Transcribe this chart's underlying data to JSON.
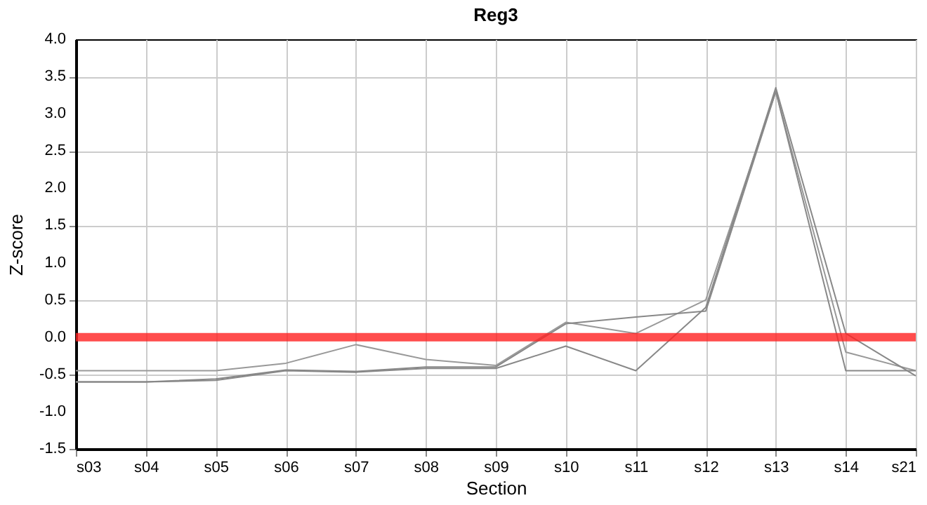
{
  "chart_data": {
    "type": "line",
    "title": "Reg3",
    "xlabel": "Section",
    "ylabel": "Z-score",
    "categories": [
      "s03",
      "s04",
      "s05",
      "s06",
      "s07",
      "s08",
      "s09",
      "s10",
      "s11",
      "s12",
      "s13",
      "s14",
      "s21"
    ],
    "series": [
      {
        "color": "#999999",
        "values": [
          -0.45,
          -0.45,
          -0.45,
          -0.35,
          -0.1,
          -0.3,
          -0.38,
          0.2,
          0.05,
          0.5,
          3.3,
          -0.2,
          -0.45
        ]
      },
      {
        "color": "#888888",
        "values": [
          -0.6,
          -0.6,
          -0.58,
          -0.45,
          -0.47,
          -0.42,
          -0.42,
          -0.12,
          -0.45,
          0.4,
          3.35,
          0.05,
          -0.52
        ]
      },
      {
        "color": "#888888",
        "values": [
          -0.6,
          -0.6,
          -0.56,
          -0.44,
          -0.46,
          -0.4,
          -0.4,
          0.18,
          0.27,
          0.35,
          3.3,
          -0.45,
          -0.45
        ]
      }
    ],
    "ylim": [
      -1.5,
      4.0
    ],
    "yticks": [
      {
        "value": -1.5,
        "label": "-1.5"
      },
      {
        "value": -1.0,
        "label": "-1.0"
      },
      {
        "value": -0.5,
        "label": "-0.5"
      },
      {
        "value": 0,
        "label": "0.0"
      },
      {
        "value": 0.5,
        "label": "0.5"
      },
      {
        "value": 1.0,
        "label": "1.0"
      },
      {
        "value": 1.5,
        "label": "1.5"
      },
      {
        "value": 2.0,
        "label": "2.0"
      },
      {
        "value": 2.5,
        "label": "2.5"
      },
      {
        "value": 3.0,
        "label": "3.0"
      },
      {
        "value": 3.5,
        "label": "3.5"
      },
      {
        "value": 4.0,
        "label": "4.0"
      }
    ],
    "ref_lines": [
      {
        "axis": "y",
        "value": 0,
        "color": "#ff2020"
      }
    ],
    "grid": true,
    "marker": "none",
    "line_style": "solid"
  }
}
